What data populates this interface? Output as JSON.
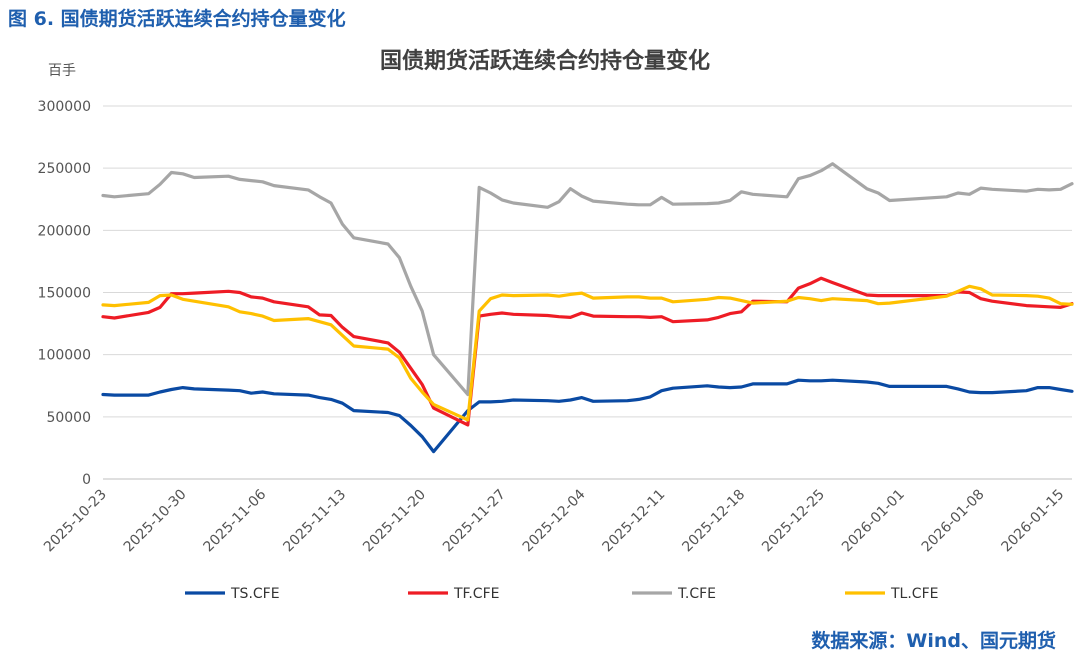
{
  "figure_caption": "图 6. 国债期货活跃连续合约持仓量变化",
  "source_note": "数据来源：Wind、国元期货",
  "chart_data": {
    "type": "line",
    "title": "国债期货活跃连续合约持仓量变化",
    "ylabel": "百手",
    "ylim": [
      0,
      300000
    ],
    "yticks": [
      0,
      50000,
      100000,
      150000,
      200000,
      250000,
      300000
    ],
    "ytick_labels": [
      "0",
      "50000",
      "100000",
      "150000",
      "200000",
      "250000",
      "300000"
    ],
    "xlim": [
      "2025-10-23",
      "2026-01-16"
    ],
    "xticks": [
      "2025-10-23",
      "2025-10-30",
      "2025-11-06",
      "2025-11-13",
      "2025-11-20",
      "2025-11-27",
      "2025-12-04",
      "2025-12-11",
      "2025-12-18",
      "2025-12-25",
      "2026-01-01",
      "2026-01-08",
      "2026-01-15"
    ],
    "grid": "horizontal",
    "legend_position": "bottom",
    "series": [
      {
        "name": "TS.CFE",
        "color": "#0a4aa3",
        "points": [
          [
            "2025-10-23",
            68000
          ],
          [
            "2025-10-24",
            67500
          ],
          [
            "2025-10-27",
            67500
          ],
          [
            "2025-10-28",
            70000
          ],
          [
            "2025-10-29",
            72000
          ],
          [
            "2025-10-30",
            73500
          ],
          [
            "2025-10-31",
            72500
          ],
          [
            "2025-11-03",
            71500
          ],
          [
            "2025-11-04",
            71000
          ],
          [
            "2025-11-05",
            69000
          ],
          [
            "2025-11-06",
            70000
          ],
          [
            "2025-11-07",
            68500
          ],
          [
            "2025-11-10",
            67500
          ],
          [
            "2025-11-11",
            65500
          ],
          [
            "2025-11-12",
            64000
          ],
          [
            "2025-11-13",
            61000
          ],
          [
            "2025-11-14",
            55000
          ],
          [
            "2025-11-17",
            53500
          ],
          [
            "2025-11-18",
            51000
          ],
          [
            "2025-11-19",
            43000
          ],
          [
            "2025-11-20",
            34000
          ],
          [
            "2025-11-21",
            22000
          ],
          [
            "2025-11-24",
            55000
          ],
          [
            "2025-11-25",
            62000
          ],
          [
            "2025-11-26",
            62000
          ],
          [
            "2025-11-27",
            62500
          ],
          [
            "2025-11-28",
            63500
          ],
          [
            "2025-12-01",
            63000
          ],
          [
            "2025-12-02",
            62500
          ],
          [
            "2025-12-03",
            63500
          ],
          [
            "2025-12-04",
            65500
          ],
          [
            "2025-12-05",
            62500
          ],
          [
            "2025-12-08",
            63000
          ],
          [
            "2025-12-09",
            64000
          ],
          [
            "2025-12-10",
            66000
          ],
          [
            "2025-12-11",
            71000
          ],
          [
            "2025-12-12",
            73000
          ],
          [
            "2025-12-15",
            75000
          ],
          [
            "2025-12-16",
            74000
          ],
          [
            "2025-12-17",
            73500
          ],
          [
            "2025-12-18",
            74000
          ],
          [
            "2025-12-19",
            76500
          ],
          [
            "2025-12-22",
            76500
          ],
          [
            "2025-12-23",
            79500
          ],
          [
            "2025-12-24",
            79000
          ],
          [
            "2025-12-25",
            79000
          ],
          [
            "2025-12-26",
            79500
          ],
          [
            "2025-12-29",
            78000
          ],
          [
            "2025-12-30",
            77000
          ],
          [
            "2025-12-31",
            74500
          ],
          [
            "2026-01-05",
            74500
          ],
          [
            "2026-01-06",
            72500
          ],
          [
            "2026-01-07",
            70000
          ],
          [
            "2026-01-08",
            69500
          ],
          [
            "2026-01-09",
            69500
          ],
          [
            "2026-01-12",
            71000
          ],
          [
            "2026-01-13",
            73500
          ],
          [
            "2026-01-14",
            73500
          ],
          [
            "2026-01-15",
            72000
          ],
          [
            "2026-01-16",
            70500
          ]
        ]
      },
      {
        "name": "TF.CFE",
        "color": "#ee1c25",
        "points": [
          [
            "2025-10-23",
            130500
          ],
          [
            "2025-10-24",
            129500
          ],
          [
            "2025-10-27",
            134000
          ],
          [
            "2025-10-28",
            138000
          ],
          [
            "2025-10-29",
            149000
          ],
          [
            "2025-10-30",
            149000
          ],
          [
            "2025-10-31",
            149500
          ],
          [
            "2025-11-03",
            151000
          ],
          [
            "2025-11-04",
            150000
          ],
          [
            "2025-11-05",
            146500
          ],
          [
            "2025-11-06",
            145500
          ],
          [
            "2025-11-07",
            142500
          ],
          [
            "2025-11-10",
            138500
          ],
          [
            "2025-11-11",
            132000
          ],
          [
            "2025-11-12",
            131500
          ],
          [
            "2025-11-13",
            122000
          ],
          [
            "2025-11-14",
            114500
          ],
          [
            "2025-11-17",
            109500
          ],
          [
            "2025-11-18",
            102000
          ],
          [
            "2025-11-19",
            89000
          ],
          [
            "2025-11-20",
            76000
          ],
          [
            "2025-11-21",
            57000
          ],
          [
            "2025-11-24",
            43500
          ],
          [
            "2025-11-25",
            131000
          ],
          [
            "2025-11-26",
            132500
          ],
          [
            "2025-11-27",
            133500
          ],
          [
            "2025-11-28",
            132500
          ],
          [
            "2025-12-01",
            131500
          ],
          [
            "2025-12-02",
            130500
          ],
          [
            "2025-12-03",
            130000
          ],
          [
            "2025-12-04",
            133500
          ],
          [
            "2025-12-05",
            131000
          ],
          [
            "2025-12-08",
            130500
          ],
          [
            "2025-12-09",
            130500
          ],
          [
            "2025-12-10",
            130000
          ],
          [
            "2025-12-11",
            130500
          ],
          [
            "2025-12-12",
            126500
          ],
          [
            "2025-12-15",
            128000
          ],
          [
            "2025-12-16",
            130000
          ],
          [
            "2025-12-17",
            133000
          ],
          [
            "2025-12-18",
            134500
          ],
          [
            "2025-12-19",
            143000
          ],
          [
            "2025-12-22",
            142500
          ],
          [
            "2025-12-23",
            153500
          ],
          [
            "2025-12-24",
            157000
          ],
          [
            "2025-12-25",
            161500
          ],
          [
            "2025-12-26",
            158000
          ],
          [
            "2025-12-29",
            148000
          ],
          [
            "2025-12-30",
            147500
          ],
          [
            "2025-12-31",
            147500
          ],
          [
            "2026-01-05",
            147500
          ],
          [
            "2026-01-06",
            150500
          ],
          [
            "2026-01-07",
            150000
          ],
          [
            "2026-01-08",
            145000
          ],
          [
            "2026-01-09",
            143000
          ],
          [
            "2026-01-12",
            139500
          ],
          [
            "2026-01-13",
            139000
          ],
          [
            "2026-01-14",
            138500
          ],
          [
            "2026-01-15",
            138000
          ],
          [
            "2026-01-16",
            141000
          ]
        ]
      },
      {
        "name": "T.CFE",
        "color": "#a6a6a6",
        "points": [
          [
            "2025-10-23",
            228000
          ],
          [
            "2025-10-24",
            227000
          ],
          [
            "2025-10-27",
            229500
          ],
          [
            "2025-10-28",
            237000
          ],
          [
            "2025-10-29",
            246500
          ],
          [
            "2025-10-30",
            245500
          ],
          [
            "2025-10-31",
            242500
          ],
          [
            "2025-11-03",
            243500
          ],
          [
            "2025-11-04",
            241000
          ],
          [
            "2025-11-05",
            240000
          ],
          [
            "2025-11-06",
            239000
          ],
          [
            "2025-11-07",
            236000
          ],
          [
            "2025-11-10",
            232500
          ],
          [
            "2025-11-11",
            227000
          ],
          [
            "2025-11-12",
            222000
          ],
          [
            "2025-11-13",
            205000
          ],
          [
            "2025-11-14",
            194000
          ],
          [
            "2025-11-17",
            189000
          ],
          [
            "2025-11-18",
            178000
          ],
          [
            "2025-11-19",
            155000
          ],
          [
            "2025-11-20",
            135000
          ],
          [
            "2025-11-21",
            100000
          ],
          [
            "2025-11-24",
            68000
          ],
          [
            "2025-11-25",
            234500
          ],
          [
            "2025-11-26",
            230000
          ],
          [
            "2025-11-27",
            224500
          ],
          [
            "2025-11-28",
            222000
          ],
          [
            "2025-12-01",
            218500
          ],
          [
            "2025-12-02",
            223000
          ],
          [
            "2025-12-03",
            233500
          ],
          [
            "2025-12-04",
            227500
          ],
          [
            "2025-12-05",
            223500
          ],
          [
            "2025-12-08",
            221000
          ],
          [
            "2025-12-09",
            220500
          ],
          [
            "2025-12-10",
            220500
          ],
          [
            "2025-12-11",
            226500
          ],
          [
            "2025-12-12",
            221000
          ],
          [
            "2025-12-15",
            221500
          ],
          [
            "2025-12-16",
            222000
          ],
          [
            "2025-12-17",
            224000
          ],
          [
            "2025-12-18",
            231000
          ],
          [
            "2025-12-19",
            229000
          ],
          [
            "2025-12-22",
            227000
          ],
          [
            "2025-12-23",
            241500
          ],
          [
            "2025-12-24",
            244000
          ],
          [
            "2025-12-25",
            248000
          ],
          [
            "2025-12-26",
            253500
          ],
          [
            "2025-12-29",
            233500
          ],
          [
            "2025-12-30",
            230000
          ],
          [
            "2025-12-31",
            224000
          ],
          [
            "2026-01-05",
            227000
          ],
          [
            "2026-01-06",
            230000
          ],
          [
            "2026-01-07",
            229000
          ],
          [
            "2026-01-08",
            234000
          ],
          [
            "2026-01-09",
            233000
          ],
          [
            "2026-01-12",
            231500
          ],
          [
            "2026-01-13",
            233000
          ],
          [
            "2026-01-14",
            232500
          ],
          [
            "2026-01-15",
            233000
          ],
          [
            "2026-01-16",
            237500
          ]
        ]
      },
      {
        "name": "TL.CFE",
        "color": "#ffc000",
        "points": [
          [
            "2025-10-23",
            140000
          ],
          [
            "2025-10-24",
            139500
          ],
          [
            "2025-10-27",
            142000
          ],
          [
            "2025-10-28",
            147500
          ],
          [
            "2025-10-29",
            148000
          ],
          [
            "2025-10-30",
            144500
          ],
          [
            "2025-10-31",
            143000
          ],
          [
            "2025-11-03",
            138500
          ],
          [
            "2025-11-04",
            134500
          ],
          [
            "2025-11-05",
            133000
          ],
          [
            "2025-11-06",
            131000
          ],
          [
            "2025-11-07",
            127500
          ],
          [
            "2025-11-10",
            129000
          ],
          [
            "2025-11-11",
            126500
          ],
          [
            "2025-11-12",
            124000
          ],
          [
            "2025-11-13",
            115500
          ],
          [
            "2025-11-14",
            107000
          ],
          [
            "2025-11-17",
            104500
          ],
          [
            "2025-11-18",
            97500
          ],
          [
            "2025-11-19",
            81000
          ],
          [
            "2025-11-20",
            70000
          ],
          [
            "2025-11-21",
            60000
          ],
          [
            "2025-11-24",
            47500
          ],
          [
            "2025-11-25",
            135000
          ],
          [
            "2025-11-26",
            145000
          ],
          [
            "2025-11-27",
            148000
          ],
          [
            "2025-11-28",
            147500
          ],
          [
            "2025-12-01",
            148000
          ],
          [
            "2025-12-02",
            147000
          ],
          [
            "2025-12-03",
            148500
          ],
          [
            "2025-12-04",
            149500
          ],
          [
            "2025-12-05",
            145500
          ],
          [
            "2025-12-08",
            146500
          ],
          [
            "2025-12-09",
            146500
          ],
          [
            "2025-12-10",
            145500
          ],
          [
            "2025-12-11",
            145500
          ],
          [
            "2025-12-12",
            142500
          ],
          [
            "2025-12-15",
            144500
          ],
          [
            "2025-12-16",
            146000
          ],
          [
            "2025-12-17",
            145500
          ],
          [
            "2025-12-18",
            143500
          ],
          [
            "2025-12-19",
            141500
          ],
          [
            "2025-12-22",
            143000
          ],
          [
            "2025-12-23",
            146000
          ],
          [
            "2025-12-24",
            145000
          ],
          [
            "2025-12-25",
            143500
          ],
          [
            "2025-12-26",
            145000
          ],
          [
            "2025-12-29",
            143500
          ],
          [
            "2025-12-30",
            141000
          ],
          [
            "2025-12-31",
            141500
          ],
          [
            "2026-01-05",
            147000
          ],
          [
            "2026-01-06",
            151000
          ],
          [
            "2026-01-07",
            155000
          ],
          [
            "2026-01-08",
            153000
          ],
          [
            "2026-01-09",
            148000
          ],
          [
            "2026-01-12",
            147500
          ],
          [
            "2026-01-13",
            147000
          ],
          [
            "2026-01-14",
            145500
          ],
          [
            "2026-01-15",
            141000
          ],
          [
            "2026-01-16",
            140500
          ]
        ]
      }
    ]
  }
}
